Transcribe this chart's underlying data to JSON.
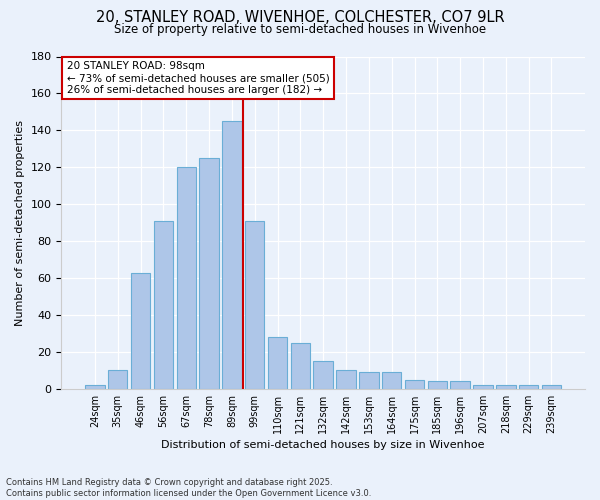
{
  "title1": "20, STANLEY ROAD, WIVENHOE, COLCHESTER, CO7 9LR",
  "title2": "Size of property relative to semi-detached houses in Wivenhoe",
  "xlabel": "Distribution of semi-detached houses by size in Wivenhoe",
  "ylabel": "Number of semi-detached properties",
  "categories": [
    "24sqm",
    "35sqm",
    "46sqm",
    "56sqm",
    "67sqm",
    "78sqm",
    "89sqm",
    "99sqm",
    "110sqm",
    "121sqm",
    "132sqm",
    "142sqm",
    "153sqm",
    "164sqm",
    "175sqm",
    "185sqm",
    "196sqm",
    "207sqm",
    "218sqm",
    "229sqm",
    "239sqm"
  ],
  "values": [
    2,
    10,
    63,
    91,
    120,
    125,
    145,
    91,
    28,
    25,
    15,
    10,
    9,
    9,
    5,
    4,
    4,
    2,
    2,
    2,
    2
  ],
  "bar_color": "#aec6e8",
  "bar_edge_color": "#6aaed6",
  "property_label": "20 STANLEY ROAD: 98sqm",
  "annotation_line1": "← 73% of semi-detached houses are smaller (505)",
  "annotation_line2": "26% of semi-detached houses are larger (182) →",
  "vline_color": "#cc0000",
  "box_edge_color": "#cc0000",
  "background_color": "#eaf1fb",
  "footer_line1": "Contains HM Land Registry data © Crown copyright and database right 2025.",
  "footer_line2": "Contains public sector information licensed under the Open Government Licence v3.0.",
  "ylim": [
    0,
    180
  ],
  "yticks": [
    0,
    20,
    40,
    60,
    80,
    100,
    120,
    140,
    160,
    180
  ],
  "vline_index": 7
}
